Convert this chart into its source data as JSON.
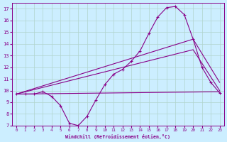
{
  "bg_color": "#cceeff",
  "grid_color": "#b0d4cc",
  "line_color": "#880088",
  "xlim": [
    -0.5,
    23.5
  ],
  "ylim": [
    7,
    17.5
  ],
  "yticks": [
    7,
    8,
    9,
    10,
    11,
    12,
    13,
    14,
    15,
    16,
    17
  ],
  "xticks": [
    0,
    1,
    2,
    3,
    4,
    5,
    6,
    7,
    8,
    9,
    10,
    11,
    12,
    13,
    14,
    15,
    16,
    17,
    18,
    19,
    20,
    21,
    22,
    23
  ],
  "xlabel": "Windchill (Refroidissement éolien,°C)",
  "lines": [
    {
      "x": [
        0,
        1,
        2,
        3,
        4,
        5,
        6,
        7,
        8,
        9,
        10,
        11,
        12,
        13,
        14,
        15,
        16,
        17,
        18,
        19,
        20,
        21,
        22,
        23
      ],
      "y": [
        9.7,
        9.7,
        9.7,
        9.9,
        9.5,
        8.7,
        7.2,
        7.0,
        7.8,
        9.2,
        10.5,
        11.4,
        11.8,
        12.5,
        13.4,
        14.9,
        16.3,
        17.1,
        17.2,
        16.5,
        14.4,
        12.0,
        10.7,
        9.8
      ],
      "marker": true
    },
    {
      "x": [
        0,
        20,
        23
      ],
      "y": [
        9.7,
        14.4,
        10.7
      ],
      "marker": false
    },
    {
      "x": [
        0,
        20,
        23
      ],
      "y": [
        9.7,
        13.5,
        10.0
      ],
      "marker": false
    },
    {
      "x": [
        0,
        23
      ],
      "y": [
        9.7,
        9.9
      ],
      "marker": false
    }
  ]
}
